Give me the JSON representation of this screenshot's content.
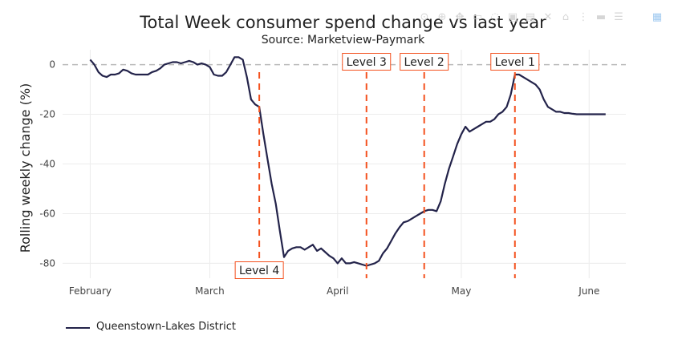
{
  "chart_data": {
    "type": "line",
    "title": "Total Week consumer spend change vs last year",
    "subtitle": "Source: Marketview-Paymark",
    "xlabel": "",
    "ylabel": "Rolling weekly change (%)",
    "x_ticks": [
      "February",
      "March",
      "April",
      "May",
      "June"
    ],
    "y_ticks": [
      0,
      -20,
      -40,
      -60,
      -80
    ],
    "ylim": [
      -86,
      6
    ],
    "xlim": [
      -6.7,
      129.9
    ],
    "grid": true,
    "legend": "bottom-left",
    "colors": {
      "line": "#23234a",
      "level_line": "#f4511e",
      "zero_line": "#bbbbbb"
    },
    "series": [
      {
        "name": "Queenstown-Lakes District",
        "x": [
          0,
          1,
          2,
          3,
          4,
          5,
          6,
          7,
          8,
          9,
          10,
          11,
          12,
          13,
          14,
          15,
          16,
          17,
          18,
          19,
          20,
          21,
          22,
          23,
          24,
          25,
          26,
          27,
          28,
          29,
          30,
          31,
          32,
          33,
          34,
          35,
          36,
          37,
          38,
          39,
          40,
          41,
          42,
          43,
          44,
          45,
          46,
          47,
          48,
          49,
          50,
          51,
          52,
          53,
          54,
          55,
          56,
          57,
          58,
          59,
          60,
          61,
          62,
          63,
          64,
          65,
          66,
          67,
          68,
          69,
          70,
          71,
          72,
          73,
          74,
          75,
          76,
          77,
          78,
          79,
          80,
          81,
          82,
          83,
          84,
          85,
          86,
          87,
          88,
          89,
          90,
          91,
          92,
          93,
          94,
          95,
          96,
          97,
          98,
          99,
          100,
          101,
          102,
          103,
          104,
          105,
          106,
          107,
          108,
          109,
          110,
          111,
          112,
          113,
          114,
          115,
          116,
          117,
          118,
          119,
          120,
          121,
          122,
          123,
          124,
          125
        ],
        "y": [
          2,
          0,
          -3,
          -4.5,
          -5,
          -4,
          -4,
          -3.5,
          -2,
          -2.5,
          -3.5,
          -4,
          -4,
          -4,
          -4,
          -3,
          -2.5,
          -1.5,
          0,
          0.5,
          1,
          1,
          0.5,
          1,
          1.5,
          1,
          0,
          0.5,
          0,
          -1,
          -4,
          -4.5,
          -4.5,
          -3,
          0,
          3,
          3,
          2,
          -5,
          -14,
          -16,
          -17,
          -28,
          -38,
          -48,
          -56,
          -67,
          -77.5,
          -75,
          -74,
          -73.5,
          -73.5,
          -74.5,
          -73.5,
          -72.5,
          -75,
          -74,
          -75.5,
          -77,
          -78,
          -80,
          -78,
          -80,
          -80,
          -79.5,
          -80,
          -80.5,
          -81,
          -80.5,
          -80,
          -79,
          -76,
          -74,
          -71,
          -68,
          -65.5,
          -63.5,
          -63,
          -62,
          -61,
          -60,
          -59,
          -58.5,
          -58.5,
          -59,
          -55,
          -48,
          -42,
          -37,
          -32,
          -28,
          -25,
          -27,
          -26,
          -25,
          -24,
          -23,
          -23,
          -22,
          -20,
          -19,
          -17,
          -12,
          -4,
          -4,
          -5,
          -6,
          -7,
          -8,
          -10,
          -14,
          -17,
          -18,
          -19,
          -19,
          -19.5,
          -19.5,
          -19.8,
          -20,
          -20,
          -20,
          -20,
          -20,
          -20,
          -20,
          -20
        ],
        "values_note": ""
      }
    ],
    "annotations": [
      {
        "label": "Level 4",
        "x": 41
      },
      {
        "label": "Level 3",
        "x": 67
      },
      {
        "label": "Level 2",
        "x": 81
      },
      {
        "label": "Level 1",
        "x": 103
      }
    ]
  },
  "legend": {
    "items": [
      {
        "label": "Queenstown-Lakes District"
      }
    ]
  },
  "modebar": {
    "icons": [
      "camera-icon",
      "zoom-icon",
      "pan-icon",
      "box-select-icon",
      "lasso-icon",
      "zoom-in-icon",
      "zoom-out-icon",
      "autoscale-icon",
      "reset-axes-icon",
      "spike-lines-icon",
      "hover-closest-icon",
      "hover-compare-icon",
      "plotly-logo-icon"
    ]
  }
}
